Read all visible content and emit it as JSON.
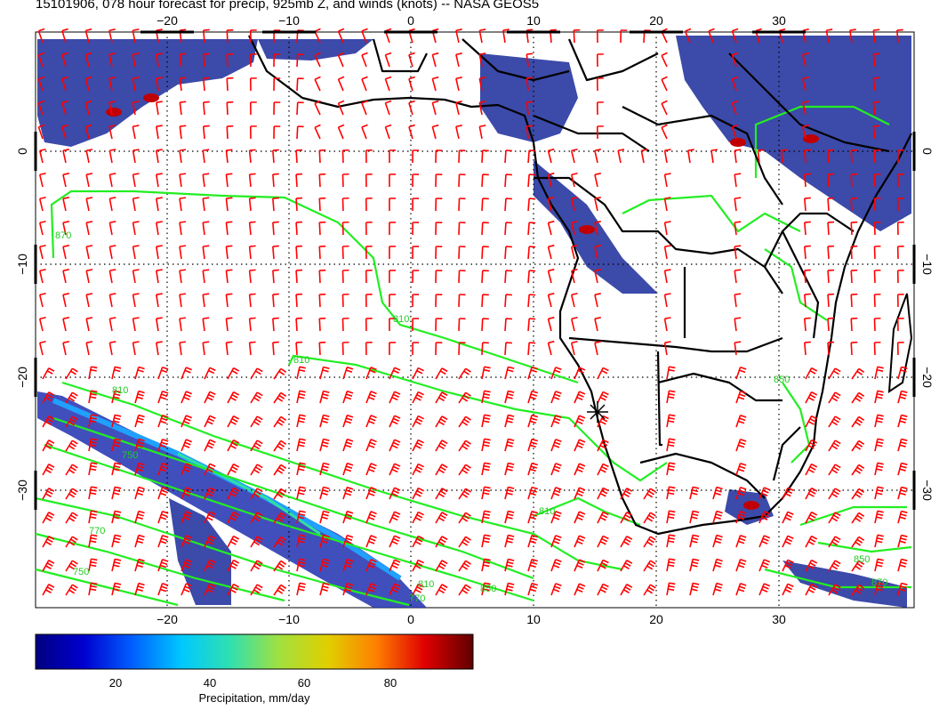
{
  "title": "15101906, 078 hour forecast for precip, 925mb Z, and winds (knots) -- NASA GEOS5",
  "map": {
    "lon_ticks": [
      "−20",
      "−10",
      "0",
      "10",
      "20",
      "30"
    ],
    "lat_ticks": [
      "0",
      "−10",
      "−20",
      "−30"
    ],
    "contour_labels": [
      "870",
      "810",
      "810",
      "810",
      "750",
      "770",
      "750",
      "810",
      "850",
      "870",
      "850",
      "850",
      "770",
      "810"
    ],
    "marker_icon": "star-marker-icon"
  },
  "colorbar": {
    "ticks": [
      "20",
      "40",
      "60",
      "80"
    ],
    "label": "Precipitation, mm/day",
    "colors": [
      "#000080",
      "#0000d0",
      "#0060ff",
      "#00c8ff",
      "#30e0b0",
      "#a0e040",
      "#e0d000",
      "#ff8000",
      "#e00000",
      "#600000"
    ]
  },
  "colors": {
    "wind_barb": "#ff0000",
    "contour": "#22ee22",
    "coast": "#000000"
  }
}
